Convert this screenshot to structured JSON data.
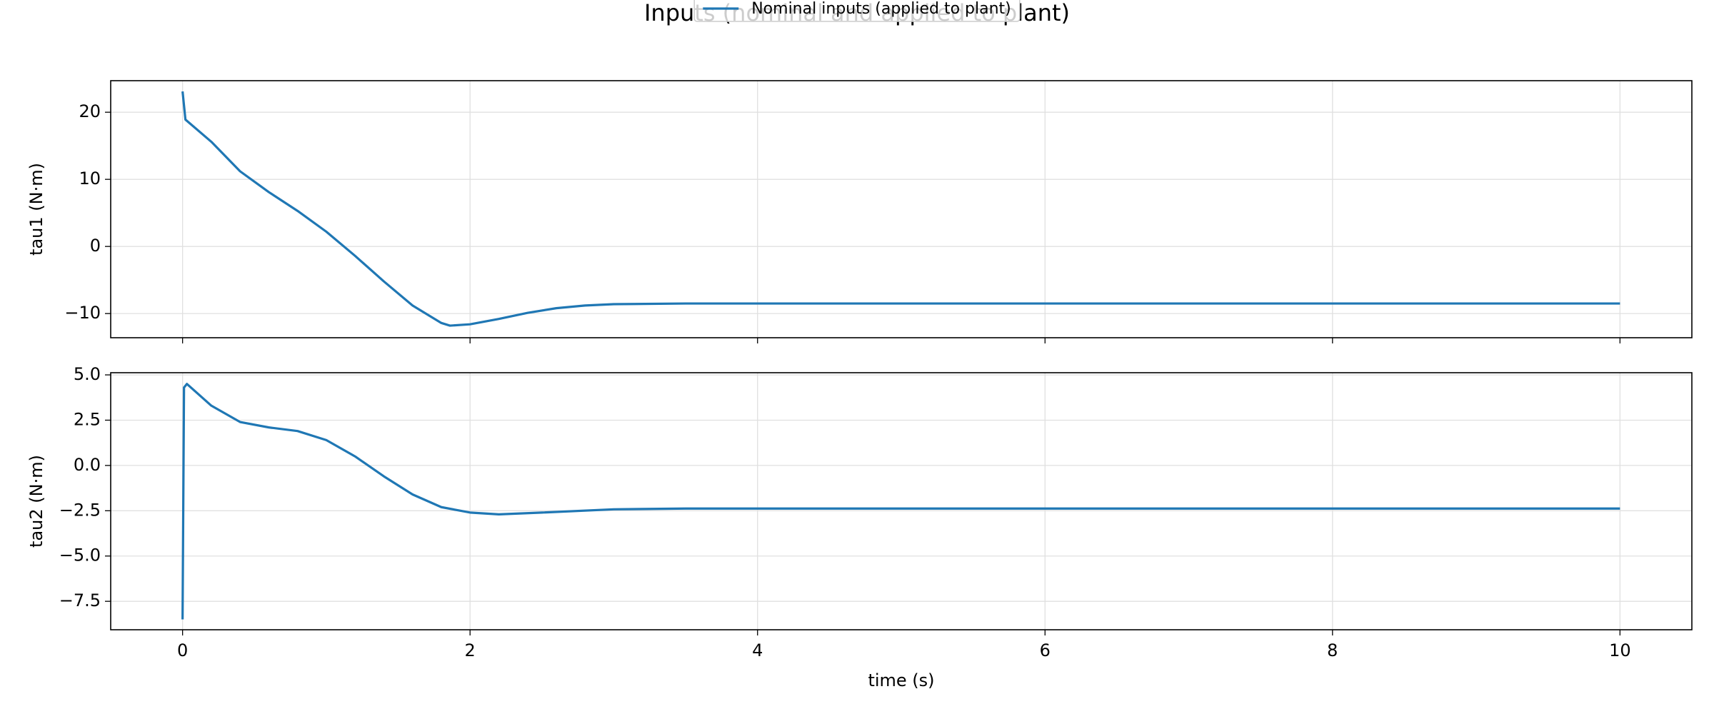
{
  "chart_data": [
    {
      "type": "line",
      "title": "Inputs (nominal and applied to plant)",
      "ylabel": "tau1 (N·m)",
      "x": [
        0,
        0.02,
        0.2,
        0.4,
        0.6,
        0.8,
        1.0,
        1.2,
        1.4,
        1.6,
        1.8,
        1.86,
        2.0,
        2.2,
        2.4,
        2.6,
        2.8,
        3.0,
        3.5,
        4,
        5,
        6,
        7,
        8,
        9,
        10
      ],
      "series": [
        {
          "name": "Nominal inputs (applied to plant)",
          "color": "#1f77b4",
          "values": [
            23.1,
            18.9,
            15.6,
            11.2,
            8.1,
            5.3,
            2.2,
            -1.4,
            -5.2,
            -8.8,
            -11.4,
            -11.8,
            -11.6,
            -10.8,
            -9.9,
            -9.2,
            -8.8,
            -8.6,
            -8.5,
            -8.5,
            -8.5,
            -8.5,
            -8.5,
            -8.5,
            -8.5,
            -8.5
          ]
        }
      ],
      "xlim": [
        -0.5,
        10.5
      ],
      "ylim": [
        -13.6,
        24.7
      ],
      "xticks": [
        0,
        2,
        4,
        6,
        8,
        10
      ],
      "show_xtick_labels": false,
      "yticks": [
        {
          "value": -10,
          "label": "−10"
        },
        0,
        10,
        20
      ],
      "grid": true,
      "legend": "upper center"
    },
    {
      "type": "line",
      "ylabel": "tau2 (N·m)",
      "xlabel": "time (s)",
      "x": [
        0,
        0.01,
        0.03,
        0.2,
        0.4,
        0.6,
        0.8,
        1.0,
        1.2,
        1.4,
        1.6,
        1.8,
        2.0,
        2.2,
        2.5,
        3.0,
        3.5,
        4,
        5,
        6,
        7,
        8,
        9,
        10
      ],
      "series": [
        {
          "color": "#1f77b4",
          "values": [
            -8.5,
            4.3,
            4.5,
            3.3,
            2.4,
            2.1,
            1.9,
            1.4,
            0.5,
            -0.6,
            -1.6,
            -2.3,
            -2.6,
            -2.7,
            -2.6,
            -2.42,
            -2.38,
            -2.38,
            -2.38,
            -2.38,
            -2.38,
            -2.38,
            -2.38,
            -2.38
          ]
        }
      ],
      "xlim": [
        -0.5,
        10.5
      ],
      "ylim": [
        -9.07,
        5.12
      ],
      "xticks": [
        0,
        2,
        4,
        6,
        8,
        10
      ],
      "show_xtick_labels": true,
      "yticks": [
        {
          "value": -7.5,
          "label": "−7.5"
        },
        {
          "value": -5,
          "label": "−5.0"
        },
        {
          "value": -2.5,
          "label": "−2.5"
        },
        {
          "value": 0,
          "label": "0.0"
        },
        2.5,
        {
          "value": 5,
          "label": "5.0"
        }
      ],
      "grid": true
    }
  ]
}
